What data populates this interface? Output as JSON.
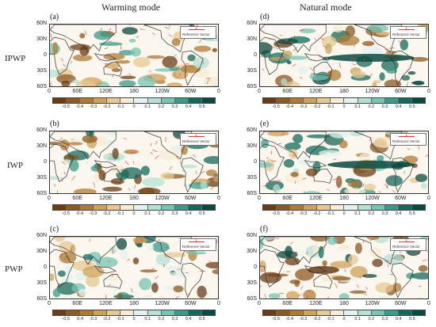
{
  "titles": {
    "left": "Warming mode",
    "right": "Natural mode"
  },
  "rows": [
    "IPWP",
    "IWP",
    "PWP"
  ],
  "letters": [
    "(a)",
    "(b)",
    "(c)",
    "(d)",
    "(e)",
    "(f)"
  ],
  "lat_labels": [
    "60N",
    "30N",
    "0",
    "30S",
    "60S"
  ],
  "lon_labels": [
    "0",
    "60E",
    "120E",
    "180",
    "120W",
    "60W",
    "0"
  ],
  "reference": {
    "label": "Reference Vector",
    "value": "1"
  },
  "colorbar": {
    "labels": [
      "-0.5",
      "-0.4",
      "-0.3",
      "-0.2",
      "-0.1",
      "0",
      "0.1",
      "0.2",
      "0.3",
      "0.4",
      "0.5"
    ],
    "colors": [
      "#6b3d14",
      "#8c5a22",
      "#b07a35",
      "#cfa15a",
      "#e6c893",
      "#f7ecd3",
      "#e3f2ee",
      "#b5e0d5",
      "#78c4b2",
      "#3c9a88",
      "#15695c",
      "#0b4a40"
    ]
  }
}
